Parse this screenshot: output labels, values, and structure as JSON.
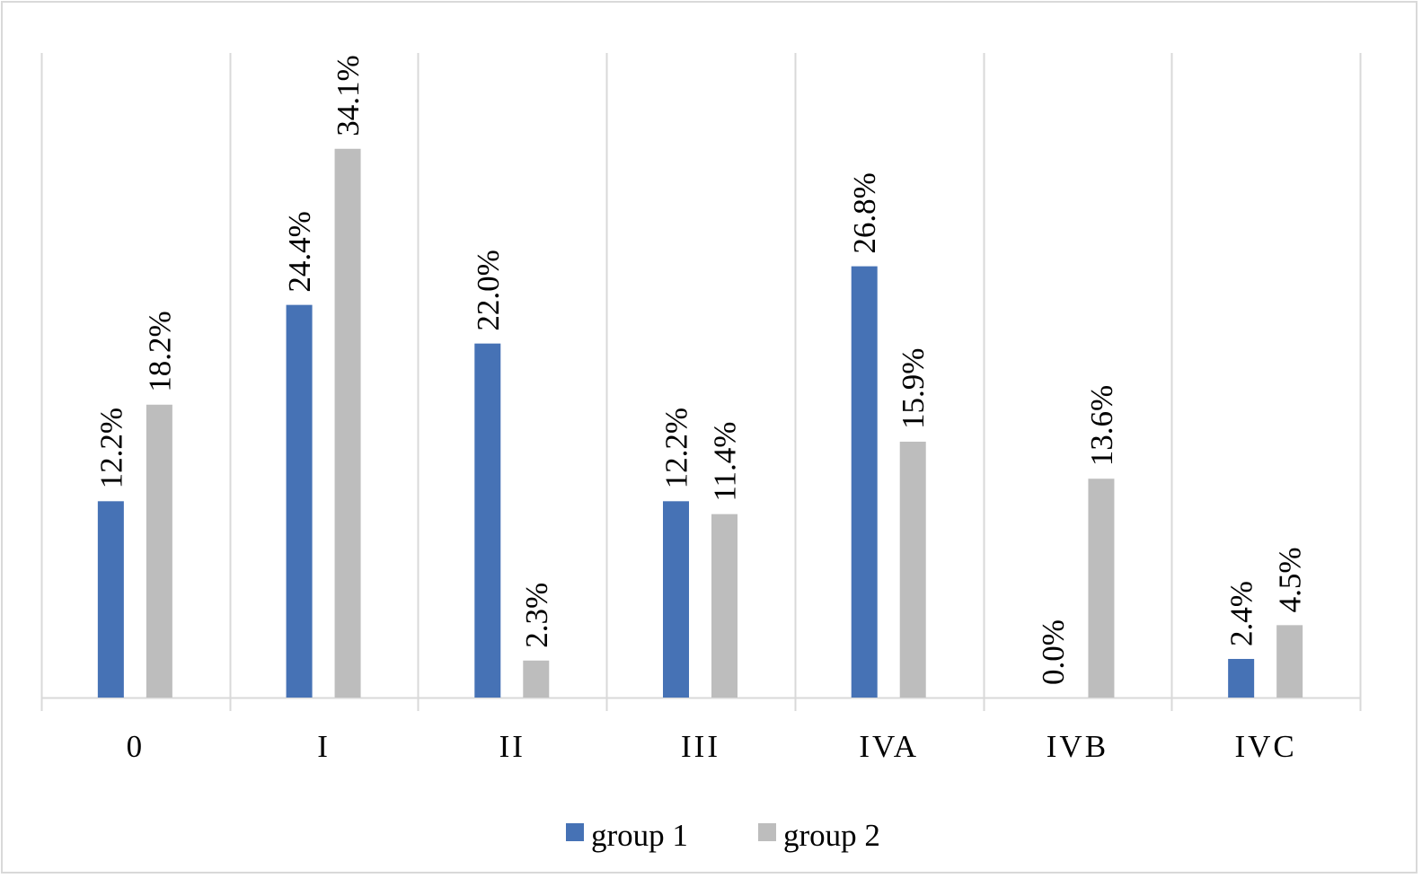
{
  "chart_data": {
    "type": "bar",
    "title": "",
    "xlabel": "",
    "ylabel": "",
    "ylim": [
      0,
      40
    ],
    "grid": "vertical category separators",
    "legend_position": "bottom",
    "categories": [
      "0",
      "I",
      "II",
      "III",
      "IVA",
      "IVB",
      "IVC"
    ],
    "series": [
      {
        "name": "group 1",
        "color": "#4672b5",
        "values": [
          12.2,
          24.4,
          22.0,
          12.2,
          26.8,
          0.0,
          2.4
        ],
        "labels": [
          "12.2%",
          "24.4%",
          "22.0%",
          "12.2%",
          "26.8%",
          "0.0%",
          "2.4%"
        ]
      },
      {
        "name": "group 2",
        "color": "#bdbdbd",
        "values": [
          18.2,
          34.1,
          2.3,
          11.4,
          15.9,
          13.6,
          4.5
        ],
        "labels": [
          "18.2%",
          "34.1%",
          "2.3%",
          "11.4%",
          "15.9%",
          "13.6%",
          "4.5%"
        ]
      }
    ]
  }
}
